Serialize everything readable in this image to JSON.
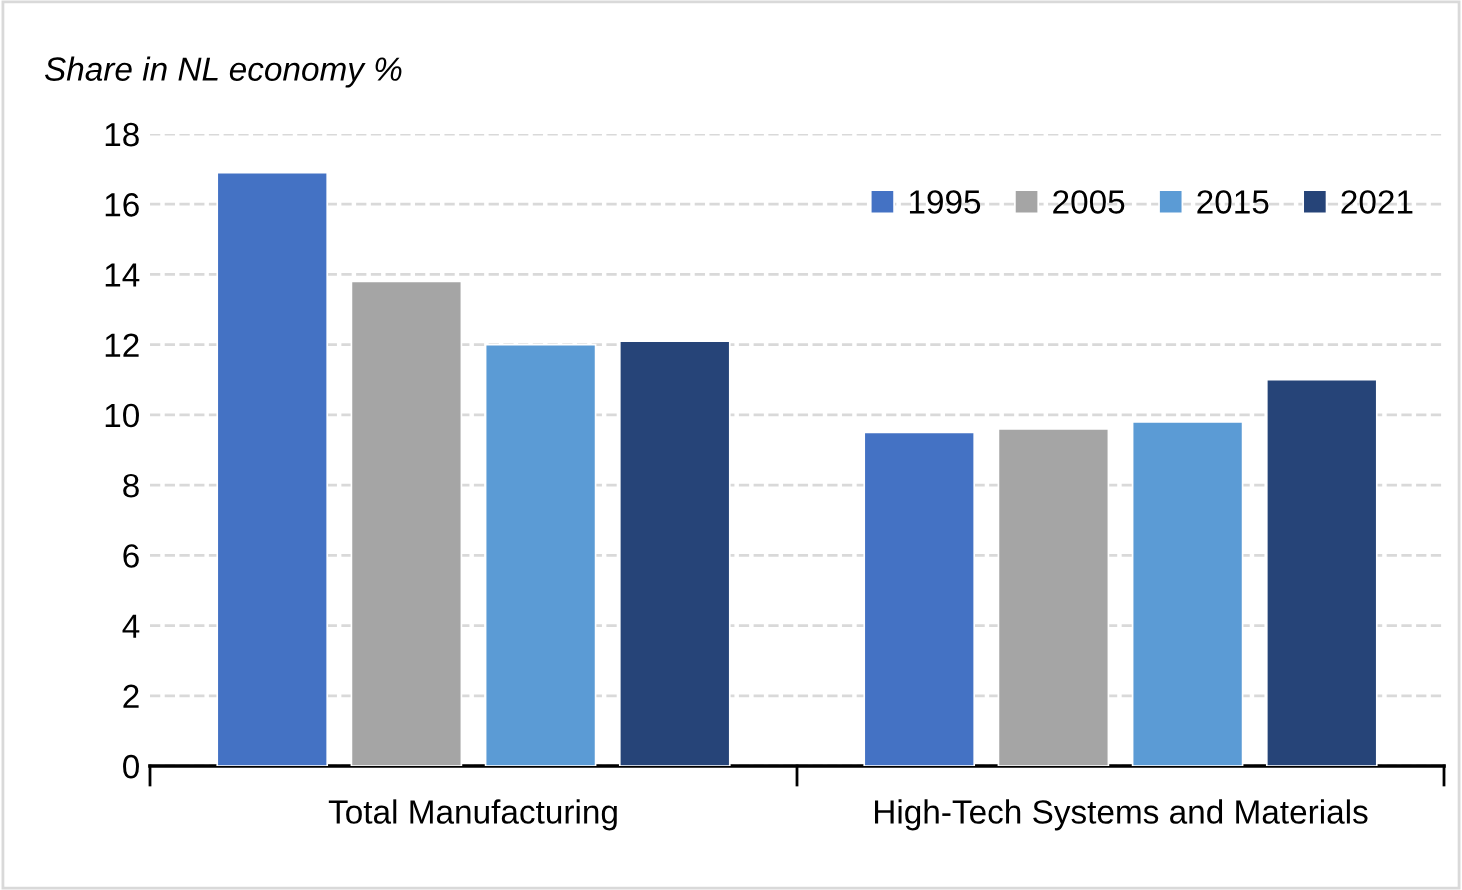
{
  "chart_data": {
    "type": "bar",
    "ylabel": "Share in NL economy %",
    "categories": [
      "Total Manufacturing",
      "High-Tech Systems and Materials"
    ],
    "series": [
      {
        "name": "1995",
        "color": "#4472c4",
        "values": [
          16.9,
          9.5
        ]
      },
      {
        "name": "2005",
        "color": "#a5a5a5",
        "values": [
          13.8,
          9.6
        ]
      },
      {
        "name": "2015",
        "color": "#5b9bd5",
        "values": [
          12.0,
          9.8
        ]
      },
      {
        "name": "2021",
        "color": "#264478",
        "values": [
          12.1,
          11.0
        ]
      }
    ],
    "ylim": [
      0,
      18
    ],
    "yticks": [
      0,
      2,
      4,
      6,
      8,
      10,
      12,
      14,
      16,
      18
    ],
    "grid": "y",
    "legend": "top right"
  }
}
